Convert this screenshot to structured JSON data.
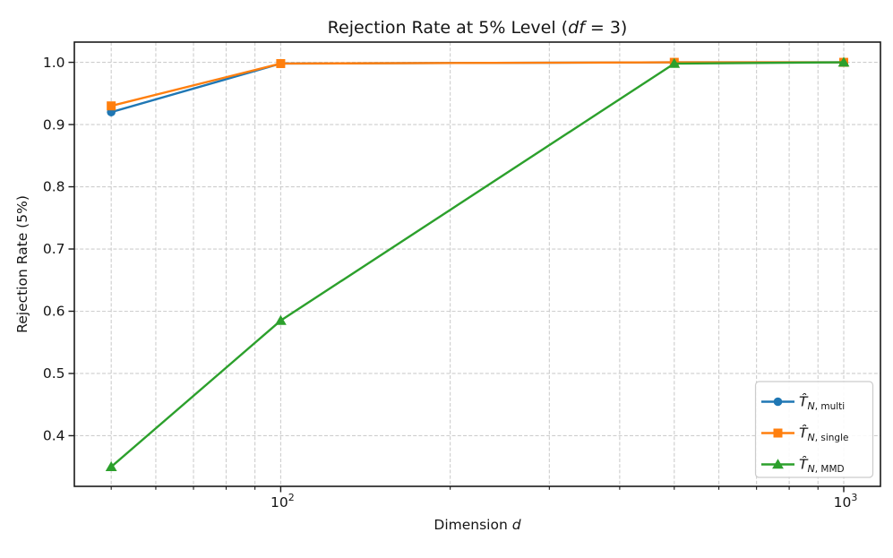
{
  "figure": {
    "background": "#ffffff",
    "axis_color": "#1a1a1a",
    "text_color": "#151515",
    "grid_color": "#cdcdcd"
  },
  "chart_data": {
    "type": "line",
    "title": "Rejection Rate at 5% Level (df = 3)",
    "title_parts": [
      {
        "text": "Rejection Rate at 5% Level (",
        "italic": false
      },
      {
        "text": "df",
        "italic": true
      },
      {
        "text": " = 3)",
        "italic": false
      }
    ],
    "xlabel": "Dimension d",
    "xlabel_parts": [
      {
        "text": "Dimension ",
        "italic": false
      },
      {
        "text": "d",
        "italic": true
      }
    ],
    "ylabel": "Rejection Rate (5%)",
    "x_scale": "log",
    "grid": {
      "show": true,
      "style": "dashed"
    },
    "x": [
      50,
      100,
      500,
      1000
    ],
    "series": [
      {
        "key": "multi",
        "label": "T̂_(N, multi)",
        "label_head": "T̂",
        "sub_italic": "N",
        "sub_rest": ", multi",
        "color": "#1f77b4",
        "marker": "circle",
        "values": [
          0.92,
          0.998,
          1.0,
          1.0
        ]
      },
      {
        "key": "single",
        "label": "T̂_(N, single)",
        "label_head": "T̂",
        "sub_italic": "N",
        "sub_rest": ", single",
        "color": "#ff7f0e",
        "marker": "square",
        "values": [
          0.93,
          0.998,
          1.0,
          1.0
        ]
      },
      {
        "key": "mmd",
        "label": "T̂_(N, MMD)",
        "label_head": "T̂",
        "sub_italic": "N",
        "sub_rest": ", MMD",
        "color": "#2ca02c",
        "marker": "triangle",
        "values": [
          0.35,
          0.585,
          0.998,
          1.0
        ]
      }
    ],
    "ylim": [
      0.3186,
      1.0325
    ],
    "xlim": [
      43,
      1162
    ],
    "y_ticks": [
      0.4,
      0.5,
      0.6,
      0.7,
      0.8,
      0.9,
      1.0
    ],
    "x_major_ticks": [
      {
        "value": 100,
        "base": "10",
        "exp": "2"
      },
      {
        "value": 1000,
        "base": "10",
        "exp": "3"
      }
    ],
    "x_minor_ticks": [
      50,
      60,
      70,
      80,
      90,
      200,
      300,
      400,
      500,
      600,
      700,
      800,
      900
    ],
    "legend_position": "lower right"
  }
}
